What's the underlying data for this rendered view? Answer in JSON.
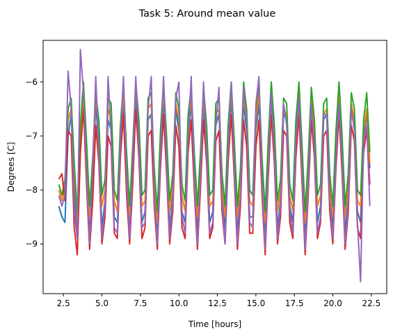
{
  "chart_data": {
    "type": "line",
    "title": "Task 5: Around mean value",
    "xlabel": "Time [hours]",
    "ylabel": "Degrees [C]",
    "xlim": [
      1.18,
      23.5
    ],
    "ylim": [
      -9.92,
      -5.23
    ],
    "xticks": [
      2.5,
      5.0,
      7.5,
      10.0,
      12.5,
      15.0,
      17.5,
      20.0,
      22.5
    ],
    "xtick_labels": [
      "2.5",
      "5.0",
      "7.5",
      "10.0",
      "12.5",
      "15.0",
      "17.5",
      "20.0",
      "22.5"
    ],
    "yticks": [
      -9,
      -8,
      -7,
      -6
    ],
    "ytick_labels": [
      "−9",
      "−8",
      "−7",
      "−6"
    ],
    "grid": false,
    "legend": "none",
    "series": [
      {
        "color": "#1f77b4",
        "x": [
          2.2,
          2.4,
          2.6,
          2.8,
          3.0,
          3.2,
          3.4,
          3.6,
          3.8,
          4.0,
          4.2,
          4.4,
          4.6,
          4.8,
          5.0,
          5.2,
          5.4,
          5.6,
          5.8,
          6.0,
          6.2,
          6.4,
          6.6,
          6.8,
          7.0,
          7.2,
          7.4,
          7.6,
          7.8,
          8.0,
          8.2,
          8.4,
          8.6,
          8.8,
          9.0,
          9.2,
          9.4,
          9.6,
          9.8,
          10.0,
          10.2,
          10.4,
          10.6,
          10.8,
          11.0,
          11.2,
          11.4,
          11.6,
          11.8,
          12.0,
          12.2,
          12.4,
          12.6,
          12.8,
          13.0,
          13.2,
          13.4,
          13.6,
          13.8,
          14.0,
          14.2,
          14.4,
          14.6,
          14.8,
          15.0,
          15.2,
          15.4,
          15.6,
          15.8,
          16.0,
          16.2,
          16.4,
          16.6,
          16.8,
          17.0,
          17.2,
          17.4,
          17.6,
          17.8,
          18.0,
          18.2,
          18.4,
          18.6,
          18.8,
          19.0,
          19.2,
          19.4,
          19.6,
          19.8,
          20.0,
          20.2,
          20.4,
          20.6,
          20.8,
          21.0,
          21.2,
          21.4,
          21.6,
          21.8,
          22.0,
          22.2,
          22.4
        ],
        "y": [
          -8.3,
          -8.5,
          -8.6,
          -7.0,
          -6.6,
          -8.0,
          -8.9,
          -7.0,
          -6.3,
          -7.6,
          -8.8,
          -7.9,
          -6.4,
          -7.2,
          -8.7,
          -8.2,
          -6.7,
          -6.9,
          -8.5,
          -8.6,
          -7.2,
          -6.3,
          -7.8,
          -8.8,
          -7.6,
          -6.2,
          -7.1,
          -8.6,
          -8.4,
          -6.7,
          -6.6,
          -8.0,
          -8.8,
          -7.3,
          -6.3,
          -7.4,
          -8.7,
          -8.1,
          -6.5,
          -6.9,
          -8.4,
          -8.6,
          -7.0,
          -6.4,
          -7.7,
          -8.8,
          -7.7,
          -6.4,
          -7.2,
          -8.6,
          -8.4,
          -6.8,
          -6.6,
          -8.1,
          -8.7,
          -7.2,
          -6.3,
          -7.5,
          -8.8,
          -8.0,
          -6.4,
          -6.9,
          -8.5,
          -8.5,
          -6.9,
          -6.4,
          -7.8,
          -8.9,
          -7.5,
          -6.3,
          -7.2,
          -8.7,
          -8.2,
          -6.6,
          -6.7,
          -8.3,
          -8.6,
          -7.1,
          -6.3,
          -7.6,
          -8.9,
          -7.8,
          -6.4,
          -7.1,
          -8.6,
          -8.3,
          -6.7,
          -6.6,
          -8.1,
          -8.7,
          -7.3,
          -6.3,
          -7.4,
          -8.8,
          -8.1,
          -6.5,
          -6.8,
          -8.4,
          -8.6,
          -7.0,
          -6.6,
          -7.6
        ]
      },
      {
        "color": "#ff7f0e",
        "x": [
          2.2,
          2.4,
          2.6,
          2.8,
          3.0,
          3.2,
          3.4,
          3.6,
          3.8,
          4.0,
          4.2,
          4.4,
          4.6,
          4.8,
          5.0,
          5.2,
          5.4,
          5.6,
          5.8,
          6.0,
          6.2,
          6.4,
          6.6,
          6.8,
          7.0,
          7.2,
          7.4,
          7.6,
          7.8,
          8.0,
          8.2,
          8.4,
          8.6,
          8.8,
          9.0,
          9.2,
          9.4,
          9.6,
          9.8,
          10.0,
          10.2,
          10.4,
          10.6,
          10.8,
          11.0,
          11.2,
          11.4,
          11.6,
          11.8,
          12.0,
          12.2,
          12.4,
          12.6,
          12.8,
          13.0,
          13.2,
          13.4,
          13.6,
          13.8,
          14.0,
          14.2,
          14.4,
          14.6,
          14.8,
          15.0,
          15.2,
          15.4,
          15.6,
          15.8,
          16.0,
          16.2,
          16.4,
          16.6,
          16.8,
          17.0,
          17.2,
          17.4,
          17.6,
          17.8,
          18.0,
          18.2,
          18.4,
          18.6,
          18.8,
          19.0,
          19.2,
          19.4,
          19.6,
          19.8,
          20.0,
          20.2,
          20.4,
          20.6,
          20.8,
          21.0,
          21.2,
          21.4,
          21.6,
          21.8,
          22.0,
          22.2,
          22.4
        ],
        "y": [
          -8.0,
          -8.2,
          -7.9,
          -6.7,
          -6.5,
          -7.6,
          -8.6,
          -7.1,
          -6.2,
          -7.3,
          -8.5,
          -7.7,
          -6.3,
          -6.9,
          -8.3,
          -8.0,
          -6.5,
          -6.7,
          -8.2,
          -8.4,
          -7.0,
          -6.2,
          -7.5,
          -8.5,
          -7.4,
          -6.1,
          -6.9,
          -8.3,
          -8.2,
          -6.5,
          -6.4,
          -7.8,
          -8.6,
          -7.1,
          -6.2,
          -7.2,
          -8.4,
          -7.9,
          -6.4,
          -6.7,
          -8.1,
          -8.4,
          -6.8,
          -6.3,
          -7.5,
          -8.5,
          -7.5,
          -6.3,
          -7.0,
          -8.3,
          -8.2,
          -6.6,
          -6.5,
          -7.9,
          -8.5,
          -7.0,
          -6.2,
          -7.3,
          -8.5,
          -7.8,
          -6.3,
          -6.7,
          -8.2,
          -8.3,
          -6.7,
          -6.2,
          -7.6,
          -8.6,
          -7.3,
          -6.2,
          -7.0,
          -8.4,
          -8.0,
          -6.5,
          -6.6,
          -8.1,
          -8.4,
          -6.9,
          -6.2,
          -7.4,
          -8.6,
          -7.6,
          -6.3,
          -6.9,
          -8.3,
          -8.1,
          -6.6,
          -6.5,
          -7.9,
          -8.5,
          -7.1,
          -6.2,
          -7.2,
          -8.5,
          -7.9,
          -6.4,
          -6.7,
          -8.2,
          -8.3,
          -6.9,
          -6.5,
          -7.5
        ]
      },
      {
        "color": "#2ca02c",
        "x": [
          2.2,
          2.4,
          2.6,
          2.8,
          3.0,
          3.2,
          3.4,
          3.6,
          3.8,
          4.0,
          4.2,
          4.4,
          4.6,
          4.8,
          5.0,
          5.2,
          5.4,
          5.6,
          5.8,
          6.0,
          6.2,
          6.4,
          6.6,
          6.8,
          7.0,
          7.2,
          7.4,
          7.6,
          7.8,
          8.0,
          8.2,
          8.4,
          8.6,
          8.8,
          9.0,
          9.2,
          9.4,
          9.6,
          9.8,
          10.0,
          10.2,
          10.4,
          10.6,
          10.8,
          11.0,
          11.2,
          11.4,
          11.6,
          11.8,
          12.0,
          12.2,
          12.4,
          12.6,
          12.8,
          13.0,
          13.2,
          13.4,
          13.6,
          13.8,
          14.0,
          14.2,
          14.4,
          14.6,
          14.8,
          15.0,
          15.2,
          15.4,
          15.6,
          15.8,
          16.0,
          16.2,
          16.4,
          16.6,
          16.8,
          17.0,
          17.2,
          17.4,
          17.6,
          17.8,
          18.0,
          18.2,
          18.4,
          18.6,
          18.8,
          19.0,
          19.2,
          19.4,
          19.6,
          19.8,
          20.0,
          20.2,
          20.4,
          20.6,
          20.8,
          21.0,
          21.2,
          21.4,
          21.6,
          21.8,
          22.0,
          22.2,
          22.4
        ],
        "y": [
          -7.9,
          -8.1,
          -7.8,
          -6.5,
          -6.3,
          -7.5,
          -8.4,
          -6.8,
          -6.0,
          -7.1,
          -8.3,
          -7.4,
          -6.2,
          -6.7,
          -8.1,
          -7.8,
          -6.3,
          -6.4,
          -8.0,
          -8.2,
          -6.8,
          -6.0,
          -7.3,
          -8.3,
          -7.2,
          -6.0,
          -6.7,
          -8.1,
          -8.0,
          -6.3,
          -6.2,
          -7.6,
          -8.4,
          -6.9,
          -6.0,
          -7.0,
          -8.2,
          -7.7,
          -6.2,
          -6.5,
          -7.9,
          -8.2,
          -6.6,
          -6.1,
          -7.3,
          -8.3,
          -7.3,
          -6.1,
          -6.8,
          -8.1,
          -8.0,
          -6.4,
          -6.3,
          -7.7,
          -8.3,
          -6.8,
          -6.0,
          -7.1,
          -8.3,
          -7.6,
          -6.0,
          -6.5,
          -8.0,
          -8.1,
          -6.5,
          -6.0,
          -7.4,
          -8.4,
          -7.1,
          -6.0,
          -6.8,
          -8.2,
          -7.8,
          -6.3,
          -6.4,
          -7.9,
          -8.2,
          -6.7,
          -6.0,
          -7.2,
          -8.4,
          -7.4,
          -6.1,
          -6.7,
          -8.1,
          -7.9,
          -6.4,
          -6.3,
          -7.7,
          -8.3,
          -6.9,
          -6.0,
          -7.0,
          -8.3,
          -7.7,
          -6.2,
          -6.5,
          -8.0,
          -8.1,
          -6.7,
          -6.2,
          -7.3
        ]
      },
      {
        "color": "#d62728",
        "x": [
          2.2,
          2.4,
          2.6,
          2.8,
          3.0,
          3.2,
          3.4,
          3.6,
          3.8,
          4.0,
          4.2,
          4.4,
          4.6,
          4.8,
          5.0,
          5.2,
          5.4,
          5.6,
          5.8,
          6.0,
          6.2,
          6.4,
          6.6,
          6.8,
          7.0,
          7.2,
          7.4,
          7.6,
          7.8,
          8.0,
          8.2,
          8.4,
          8.6,
          8.8,
          9.0,
          9.2,
          9.4,
          9.6,
          9.8,
          10.0,
          10.2,
          10.4,
          10.6,
          10.8,
          11.0,
          11.2,
          11.4,
          11.6,
          11.8,
          12.0,
          12.2,
          12.4,
          12.6,
          12.8,
          13.0,
          13.2,
          13.4,
          13.6,
          13.8,
          14.0,
          14.2,
          14.4,
          14.6,
          14.8,
          15.0,
          15.2,
          15.4,
          15.6,
          15.8,
          16.0,
          16.2,
          16.4,
          16.6,
          16.8,
          17.0,
          17.2,
          17.4,
          17.6,
          17.8,
          18.0,
          18.2,
          18.4,
          18.6,
          18.8,
          19.0,
          19.2,
          19.4,
          19.6,
          19.8,
          20.0,
          20.2,
          20.4,
          20.6,
          20.8,
          21.0,
          21.2,
          21.4,
          21.6,
          21.8,
          22.0,
          22.2,
          22.4
        ],
        "y": [
          -7.8,
          -7.7,
          -8.2,
          -6.9,
          -7.0,
          -8.7,
          -9.2,
          -7.3,
          -6.5,
          -7.9,
          -9.1,
          -8.2,
          -6.8,
          -7.5,
          -9.0,
          -8.5,
          -7.0,
          -7.2,
          -8.8,
          -8.9,
          -7.4,
          -6.6,
          -8.1,
          -9.0,
          -7.9,
          -6.5,
          -7.4,
          -8.9,
          -8.7,
          -7.0,
          -6.9,
          -8.3,
          -9.1,
          -7.6,
          -6.6,
          -7.7,
          -9.0,
          -8.4,
          -6.8,
          -7.2,
          -8.7,
          -8.9,
          -7.3,
          -6.7,
          -8.0,
          -9.1,
          -8.0,
          -6.7,
          -7.5,
          -8.9,
          -8.7,
          -7.1,
          -6.9,
          -8.4,
          -9.0,
          -7.5,
          -6.6,
          -7.8,
          -9.1,
          -8.3,
          -6.7,
          -7.2,
          -8.8,
          -8.8,
          -7.2,
          -6.7,
          -8.1,
          -9.2,
          -7.8,
          -6.6,
          -7.5,
          -9.0,
          -8.5,
          -6.9,
          -7.0,
          -8.6,
          -8.9,
          -7.4,
          -6.6,
          -7.9,
          -9.2,
          -8.1,
          -6.7,
          -7.4,
          -8.9,
          -8.6,
          -7.0,
          -6.9,
          -8.4,
          -9.0,
          -7.6,
          -6.6,
          -7.7,
          -9.1,
          -8.4,
          -6.8,
          -7.1,
          -8.7,
          -8.9,
          -7.3,
          -6.9,
          -7.9
        ]
      },
      {
        "color": "#9467bd",
        "x": [
          2.2,
          2.4,
          2.6,
          2.8,
          3.0,
          3.2,
          3.4,
          3.6,
          3.8,
          4.0,
          4.2,
          4.4,
          4.6,
          4.8,
          5.0,
          5.2,
          5.4,
          5.6,
          5.8,
          6.0,
          6.2,
          6.4,
          6.6,
          6.8,
          7.0,
          7.2,
          7.4,
          7.6,
          7.8,
          8.0,
          8.2,
          8.4,
          8.6,
          8.8,
          9.0,
          9.2,
          9.4,
          9.6,
          9.8,
          10.0,
          10.2,
          10.4,
          10.6,
          10.8,
          11.0,
          11.2,
          11.4,
          11.6,
          11.8,
          12.0,
          12.2,
          12.4,
          12.6,
          12.8,
          13.0,
          13.2,
          13.4,
          13.6,
          13.8,
          14.0,
          14.2,
          14.4,
          14.6,
          14.8,
          15.0,
          15.2,
          15.4,
          15.6,
          15.8,
          16.0,
          16.2,
          16.4,
          16.6,
          16.8,
          17.0,
          17.2,
          17.4,
          17.6,
          17.8,
          18.0,
          18.2,
          18.4,
          18.6,
          18.8,
          19.0,
          19.2,
          19.4,
          19.6,
          19.8,
          20.0,
          20.2,
          20.4,
          20.6,
          20.8,
          21.0,
          21.2,
          21.4,
          21.6,
          21.8,
          22.0,
          22.2,
          22.4
        ],
        "y": [
          -8.1,
          -8.3,
          -8.1,
          -5.8,
          -6.5,
          -8.4,
          -8.9,
          -5.4,
          -6.2,
          -7.7,
          -9.0,
          -7.6,
          -5.9,
          -7.3,
          -8.9,
          -8.3,
          -5.9,
          -7.0,
          -8.7,
          -8.8,
          -7.1,
          -5.9,
          -7.8,
          -8.9,
          -7.5,
          -5.9,
          -7.2,
          -8.7,
          -8.6,
          -6.5,
          -5.9,
          -8.1,
          -9.0,
          -7.4,
          -5.9,
          -7.5,
          -8.9,
          -8.2,
          -6.3,
          -6.0,
          -8.5,
          -8.8,
          -7.1,
          -5.9,
          -7.8,
          -9.0,
          -7.8,
          -6.0,
          -7.3,
          -8.8,
          -8.6,
          -6.8,
          -6.1,
          -8.2,
          -9.0,
          -7.3,
          -6.0,
          -7.6,
          -9.0,
          -8.1,
          -6.1,
          -6.7,
          -8.6,
          -8.7,
          -6.4,
          -5.9,
          -7.9,
          -9.1,
          -7.6,
          -6.2,
          -7.3,
          -8.9,
          -8.3,
          -6.4,
          -6.8,
          -8.4,
          -8.8,
          -7.1,
          -6.3,
          -7.7,
          -9.1,
          -7.9,
          -6.4,
          -7.2,
          -8.8,
          -8.5,
          -6.6,
          -6.6,
          -8.2,
          -8.9,
          -7.4,
          -6.4,
          -7.5,
          -9.0,
          -8.2,
          -6.5,
          -6.9,
          -8.6,
          -9.7,
          -7.1,
          -6.8,
          -8.3
        ]
      }
    ]
  }
}
